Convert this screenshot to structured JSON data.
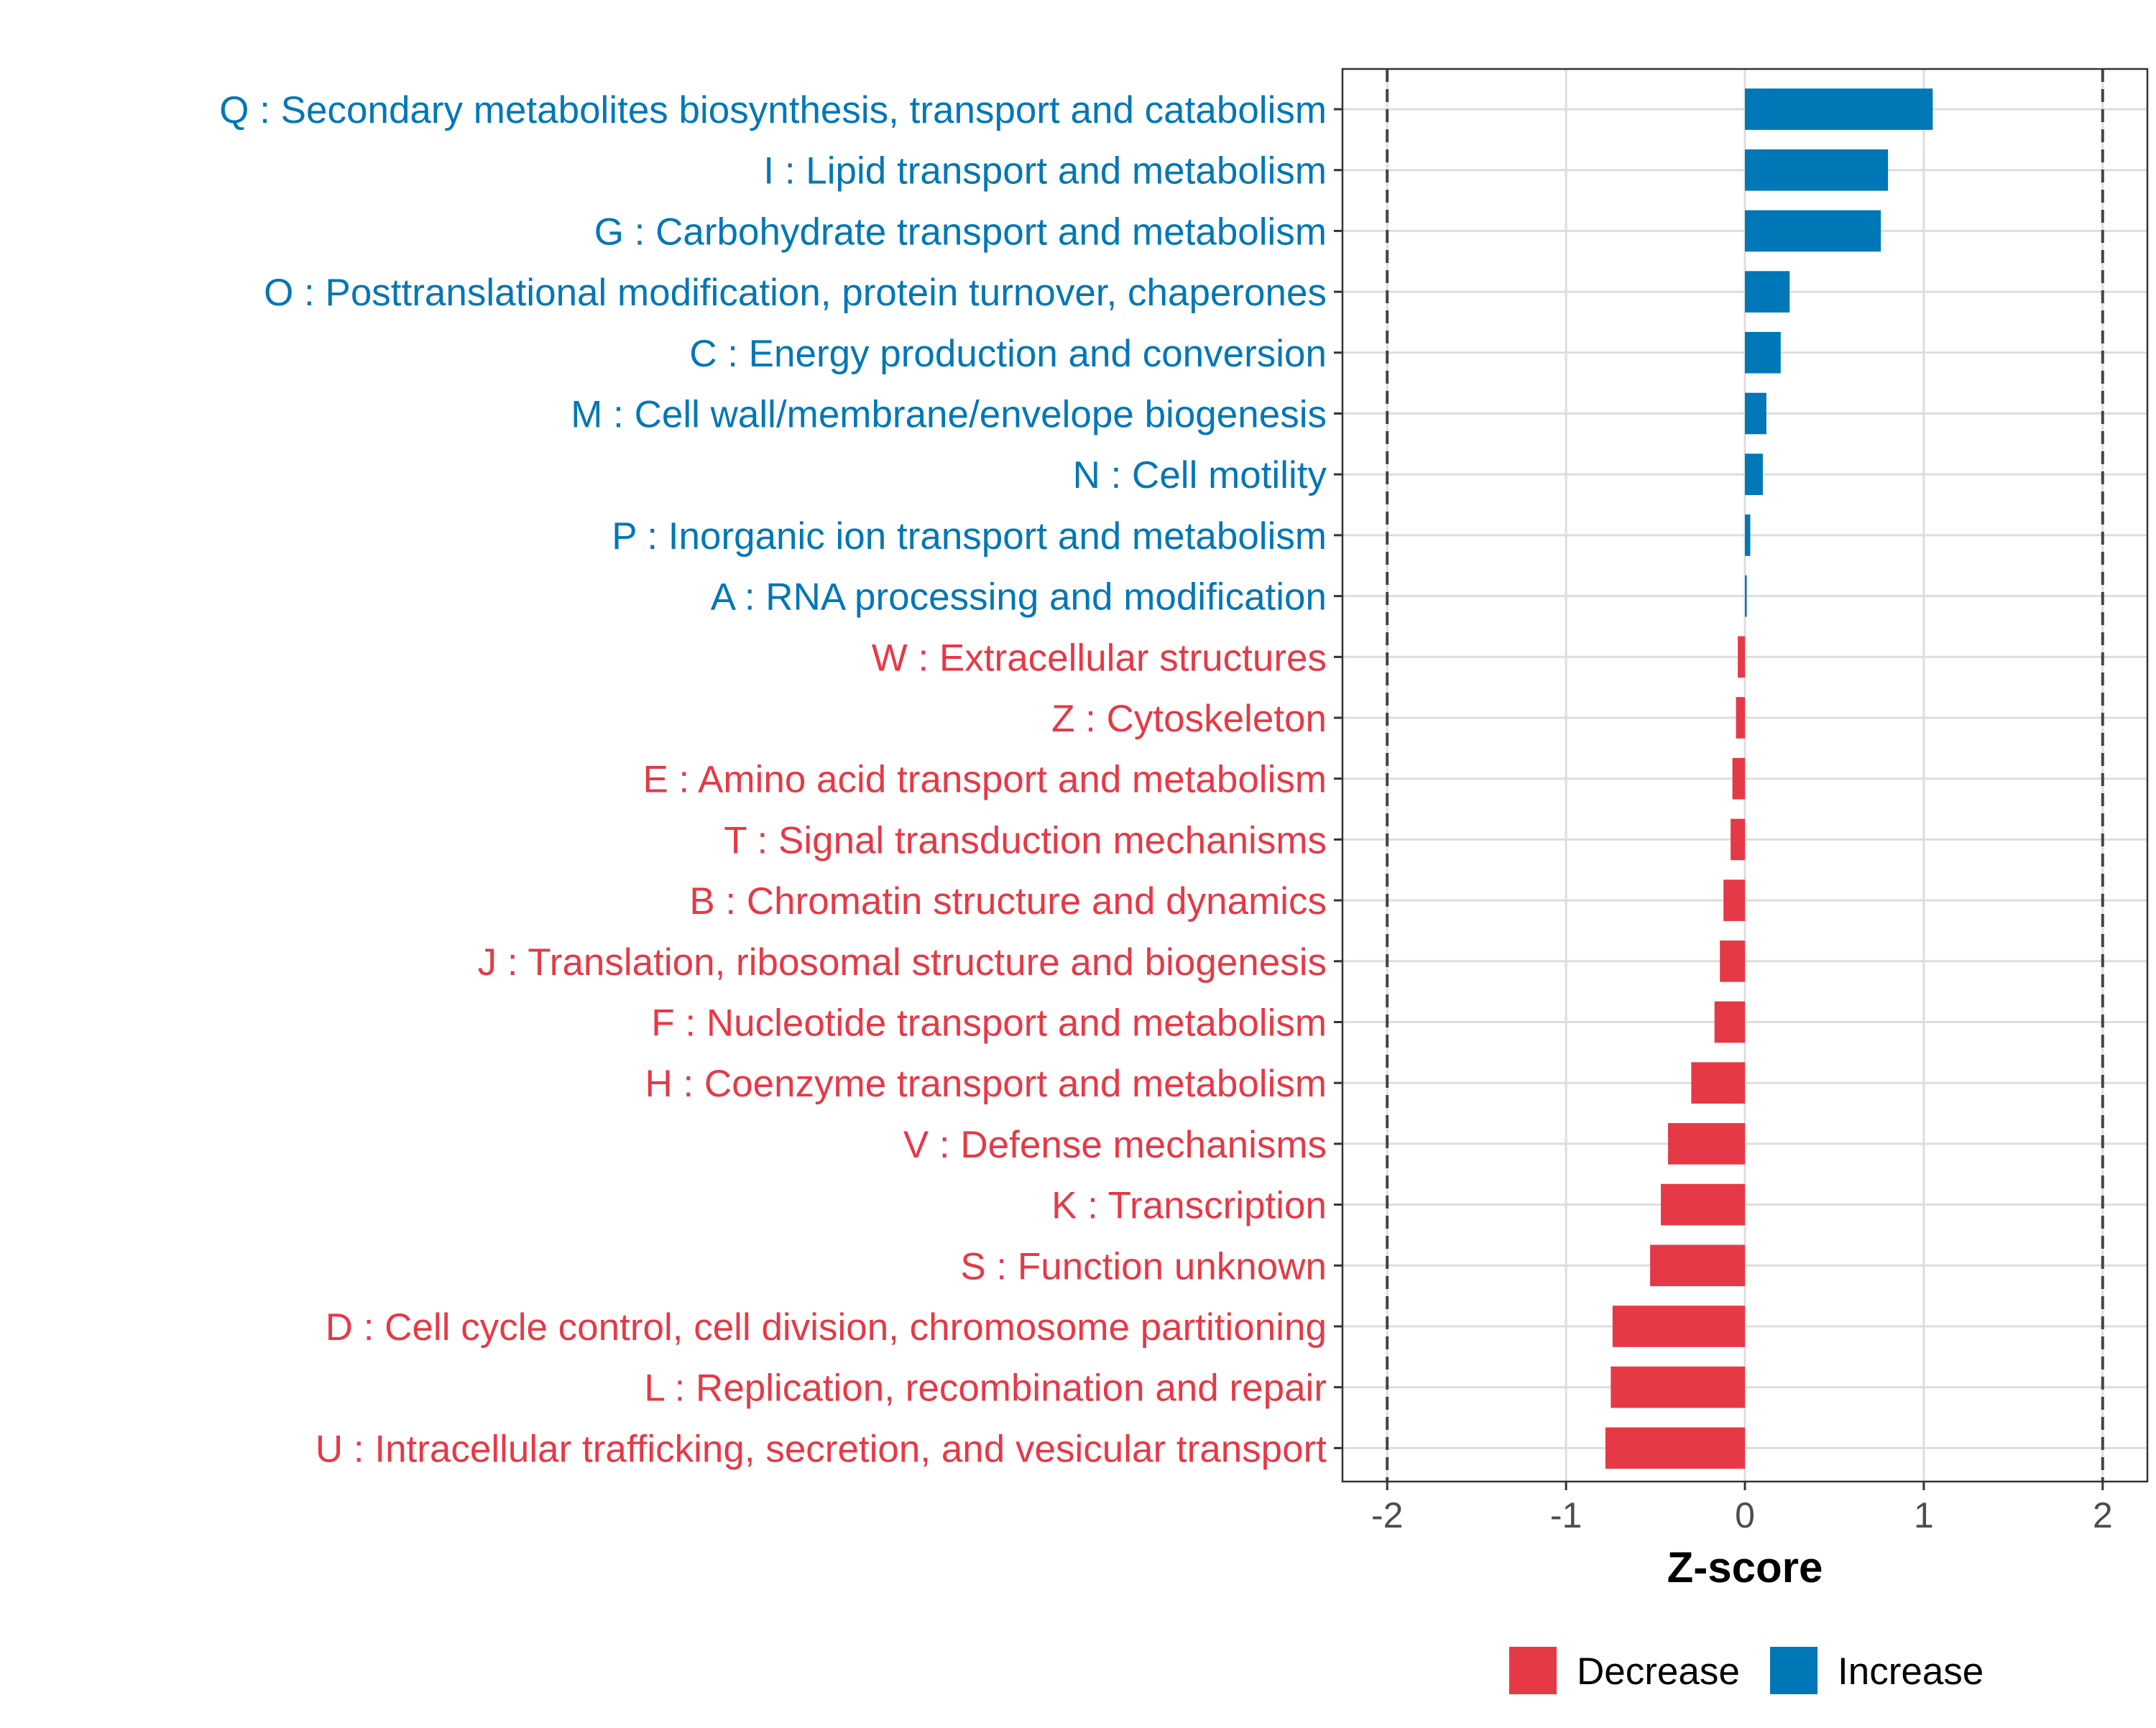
{
  "chart_data": {
    "type": "bar",
    "orientation": "horizontal",
    "title": "",
    "xlabel": "Z-score",
    "ylabel": "",
    "xlim": [
      -2.25,
      2.25
    ],
    "x_ticks": [
      -2,
      -1,
      0,
      1,
      2
    ],
    "x_tick_labels": [
      "-2",
      "-1",
      "0",
      "1",
      "2"
    ],
    "reference_lines": [
      -2,
      2
    ],
    "grid": true,
    "legend": {
      "position": "bottom-right",
      "entries": [
        {
          "label": "Decrease",
          "color": "#e63946"
        },
        {
          "label": "Increase",
          "color": "#0077b6"
        }
      ]
    },
    "colors": {
      "Increase": "#0077b6",
      "Decrease": "#e63946"
    },
    "categories": [
      {
        "label": "Q : Secondary metabolites biosynthesis, transport and catabolism",
        "value": 1.05,
        "group": "Increase"
      },
      {
        "label": "I : Lipid transport and metabolism",
        "value": 0.8,
        "group": "Increase"
      },
      {
        "label": "G : Carbohydrate transport and metabolism",
        "value": 0.76,
        "group": "Increase"
      },
      {
        "label": "O : Posttranslational modification, protein turnover, chaperones",
        "value": 0.25,
        "group": "Increase"
      },
      {
        "label": "C : Energy production and conversion",
        "value": 0.2,
        "group": "Increase"
      },
      {
        "label": "M : Cell wall/membrane/envelope biogenesis",
        "value": 0.12,
        "group": "Increase"
      },
      {
        "label": "N : Cell motility",
        "value": 0.1,
        "group": "Increase"
      },
      {
        "label": "P : Inorganic ion transport and metabolism",
        "value": 0.03,
        "group": "Increase"
      },
      {
        "label": "A : RNA processing and modification",
        "value": 0.01,
        "group": "Increase"
      },
      {
        "label": "W : Extracellular structures",
        "value": -0.04,
        "group": "Decrease"
      },
      {
        "label": "Z : Cytoskeleton",
        "value": -0.05,
        "group": "Decrease"
      },
      {
        "label": "E : Amino acid transport and metabolism",
        "value": -0.07,
        "group": "Decrease"
      },
      {
        "label": "T : Signal transduction mechanisms",
        "value": -0.08,
        "group": "Decrease"
      },
      {
        "label": "B : Chromatin structure and dynamics",
        "value": -0.12,
        "group": "Decrease"
      },
      {
        "label": "J : Translation, ribosomal structure and biogenesis",
        "value": -0.14,
        "group": "Decrease"
      },
      {
        "label": "F : Nucleotide transport and metabolism",
        "value": -0.17,
        "group": "Decrease"
      },
      {
        "label": "H : Coenzyme transport and metabolism",
        "value": -0.3,
        "group": "Decrease"
      },
      {
        "label": "V : Defense mechanisms",
        "value": -0.43,
        "group": "Decrease"
      },
      {
        "label": "K : Transcription",
        "value": -0.47,
        "group": "Decrease"
      },
      {
        "label": "S : Function unknown",
        "value": -0.53,
        "group": "Decrease"
      },
      {
        "label": "D : Cell cycle control, cell division, chromosome partitioning",
        "value": -0.74,
        "group": "Decrease"
      },
      {
        "label": "L : Replication, recombination and repair",
        "value": -0.75,
        "group": "Decrease"
      },
      {
        "label": "U : Intracellular trafficking, secretion, and vesicular transport",
        "value": -0.78,
        "group": "Decrease"
      }
    ]
  }
}
